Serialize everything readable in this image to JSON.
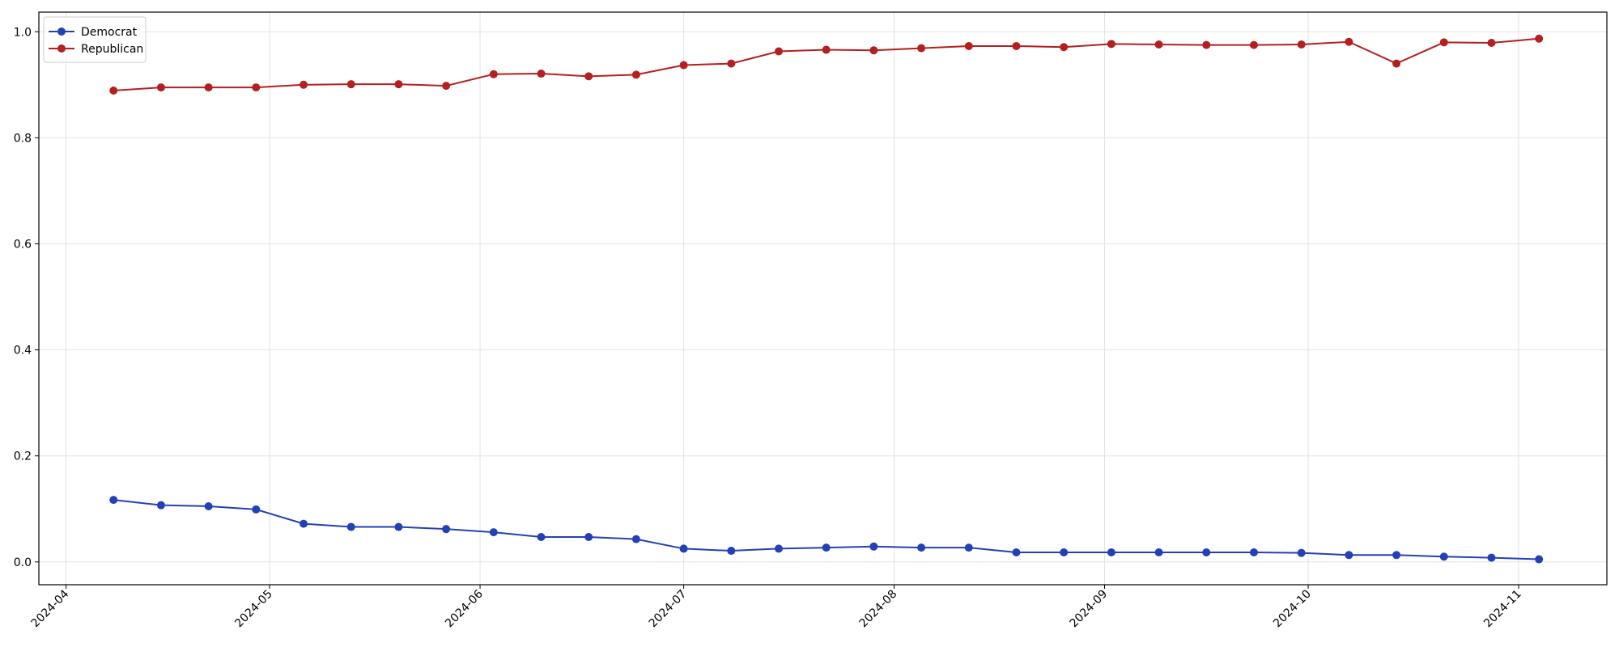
{
  "chart_data": {
    "type": "line",
    "x": [
      "2024-04-08",
      "2024-04-15",
      "2024-04-22",
      "2024-04-29",
      "2024-05-06",
      "2024-05-13",
      "2024-05-20",
      "2024-05-27",
      "2024-06-03",
      "2024-06-10",
      "2024-06-17",
      "2024-06-24",
      "2024-07-01",
      "2024-07-08",
      "2024-07-15",
      "2024-07-22",
      "2024-07-29",
      "2024-08-05",
      "2024-08-12",
      "2024-08-19",
      "2024-08-26",
      "2024-09-02",
      "2024-09-09",
      "2024-09-16",
      "2024-09-23",
      "2024-09-30",
      "2024-10-07",
      "2024-10-14",
      "2024-10-21",
      "2024-10-28",
      "2024-11-04"
    ],
    "series": [
      {
        "name": "Democrat",
        "color": "#2341b5",
        "values": [
          0.117,
          0.107,
          0.105,
          0.099,
          0.072,
          0.066,
          0.066,
          0.062,
          0.056,
          0.047,
          0.047,
          0.043,
          0.025,
          0.021,
          0.025,
          0.027,
          0.029,
          0.027,
          0.027,
          0.018,
          0.018,
          0.018,
          0.018,
          0.018,
          0.018,
          0.017,
          0.013,
          0.013,
          0.01,
          0.008,
          0.005
        ]
      },
      {
        "name": "Republican",
        "color": "#b41f1f",
        "values": [
          0.889,
          0.895,
          0.895,
          0.895,
          0.9,
          0.901,
          0.901,
          0.898,
          0.92,
          0.921,
          0.916,
          0.919,
          0.937,
          0.94,
          0.963,
          0.966,
          0.965,
          0.969,
          0.973,
          0.973,
          0.971,
          0.977,
          0.976,
          0.975,
          0.975,
          0.976,
          0.981,
          0.94,
          0.98,
          0.979,
          0.987
        ]
      }
    ],
    "xlim": [
      "2024-03-28",
      "2024-11-14"
    ],
    "xticks": [
      {
        "value": "2024-04-01",
        "label": "2024-04"
      },
      {
        "value": "2024-05-01",
        "label": "2024-05"
      },
      {
        "value": "2024-06-01",
        "label": "2024-06"
      },
      {
        "value": "2024-07-01",
        "label": "2024-07"
      },
      {
        "value": "2024-08-01",
        "label": "2024-08"
      },
      {
        "value": "2024-09-01",
        "label": "2024-09"
      },
      {
        "value": "2024-10-01",
        "label": "2024-10"
      },
      {
        "value": "2024-11-01",
        "label": "2024-11"
      }
    ],
    "ylim": [
      -0.043,
      1.037
    ],
    "yticks": [
      {
        "value": 0,
        "label": "0.0"
      },
      0.2,
      0.4,
      0.6,
      0.8,
      {
        "value": 1,
        "label": "1.0"
      }
    ],
    "grid": true,
    "legend": "upper left"
  }
}
